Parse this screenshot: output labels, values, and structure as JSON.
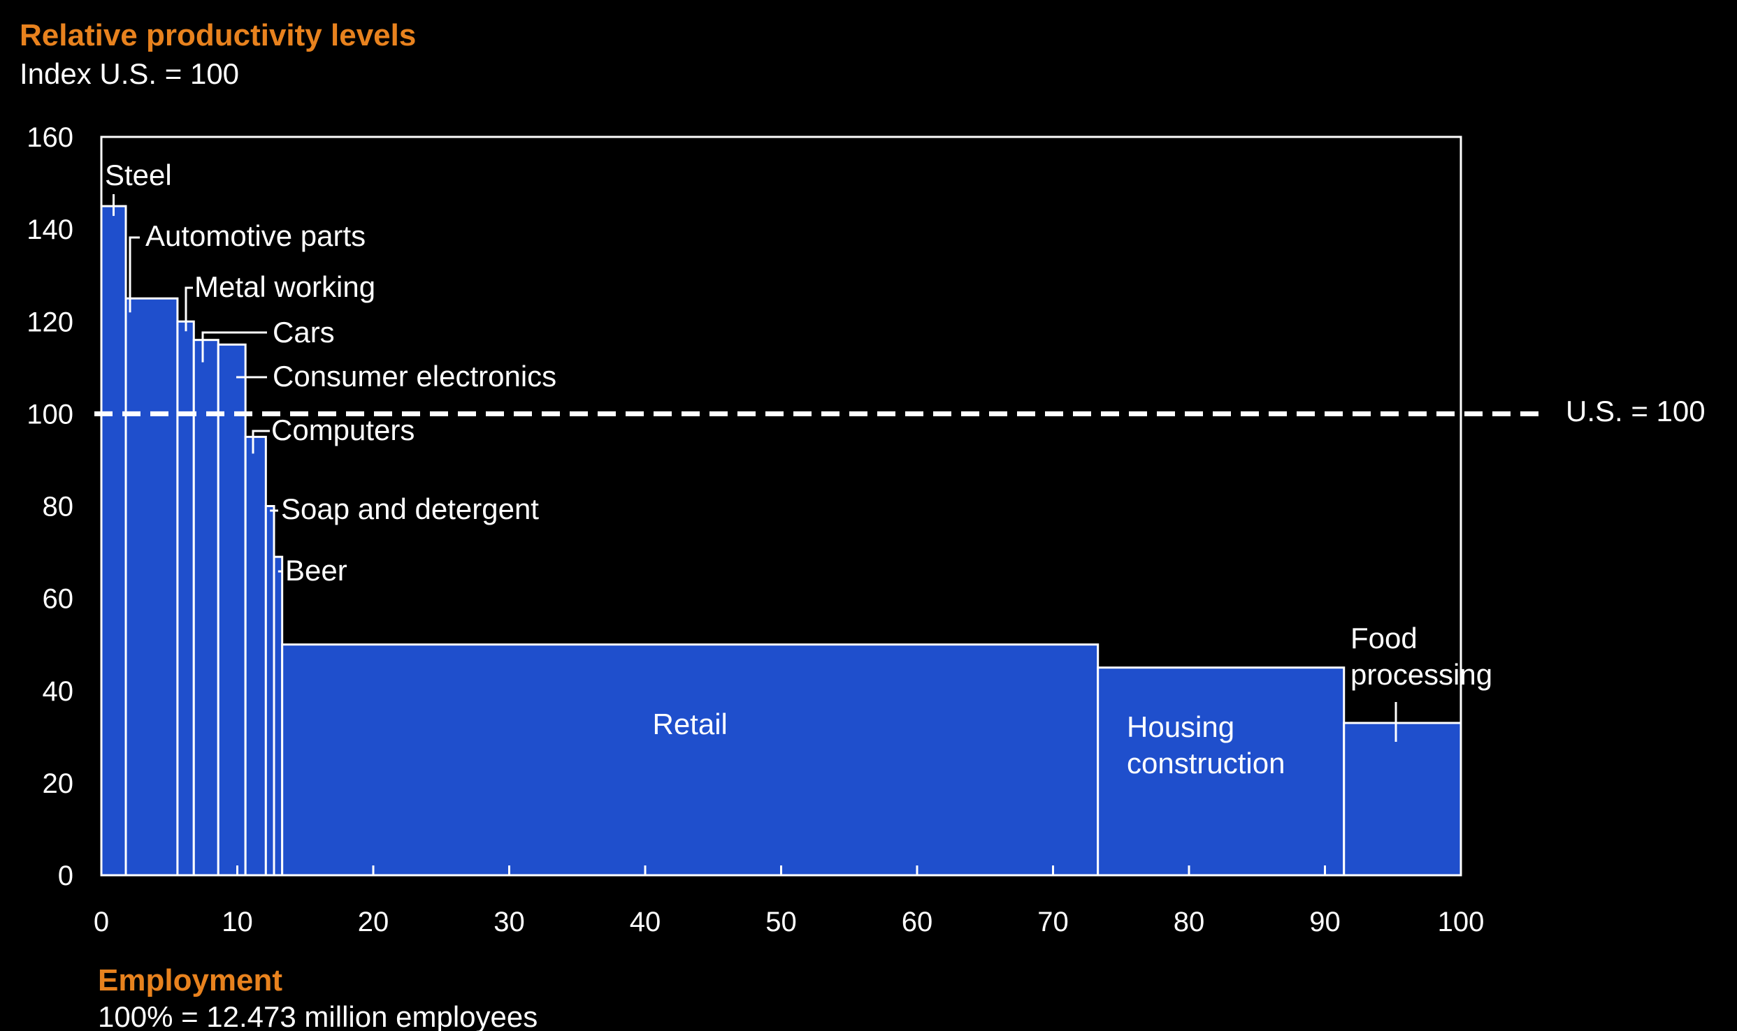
{
  "colors": {
    "background": "#000000",
    "bar": "#1f4fcc",
    "outline": "#ffffff",
    "title": "#e8821e",
    "text": "#ffffff"
  },
  "chart_data": {
    "type": "bar",
    "subtype": "variable-width (marimekko) bar chart",
    "title": "Relative productivity levels",
    "subtitle": "Index U.S. = 100",
    "xlabel": "Employment",
    "xlabel_note": "100% = 12.473 million employees",
    "xlim": [
      0,
      100
    ],
    "ylim": [
      0,
      160
    ],
    "x_ticks": [
      "0",
      "10",
      "20",
      "30",
      "40",
      "50",
      "60",
      "70",
      "80",
      "90",
      "100"
    ],
    "y_ticks": [
      "0",
      "20",
      "40",
      "60",
      "80",
      "100",
      "120",
      "140",
      "160"
    ],
    "reference_line": {
      "value": 100,
      "label": "U.S. = 100",
      "style": "dashed"
    },
    "legend": "none",
    "grid": false,
    "segments": [
      {
        "label": "Steel",
        "x_start": 0,
        "x_end": 1.8,
        "value": 145
      },
      {
        "label": "Automotive parts",
        "x_start": 1.8,
        "x_end": 5.6,
        "value": 125
      },
      {
        "label": "Metal working",
        "x_start": 5.6,
        "x_end": 6.8,
        "value": 120
      },
      {
        "label": "Cars",
        "x_start": 6.8,
        "x_end": 8.6,
        "value": 116
      },
      {
        "label": "Consumer electronics",
        "x_start": 8.6,
        "x_end": 10.6,
        "value": 115
      },
      {
        "label": "Computers",
        "x_start": 10.6,
        "x_end": 12.1,
        "value": 95
      },
      {
        "label": "Soap and detergent",
        "x_start": 12.1,
        "x_end": 12.7,
        "value": 80
      },
      {
        "label": "Beer",
        "x_start": 12.7,
        "x_end": 13.3,
        "value": 69
      },
      {
        "label": "Retail",
        "x_start": 13.3,
        "x_end": 73.3,
        "value": 50
      },
      {
        "label": "Housing construction",
        "x_start": 73.3,
        "x_end": 91.4,
        "value": 45
      },
      {
        "label": "Food processing",
        "x_start": 91.4,
        "x_end": 100,
        "value": 33
      }
    ]
  }
}
